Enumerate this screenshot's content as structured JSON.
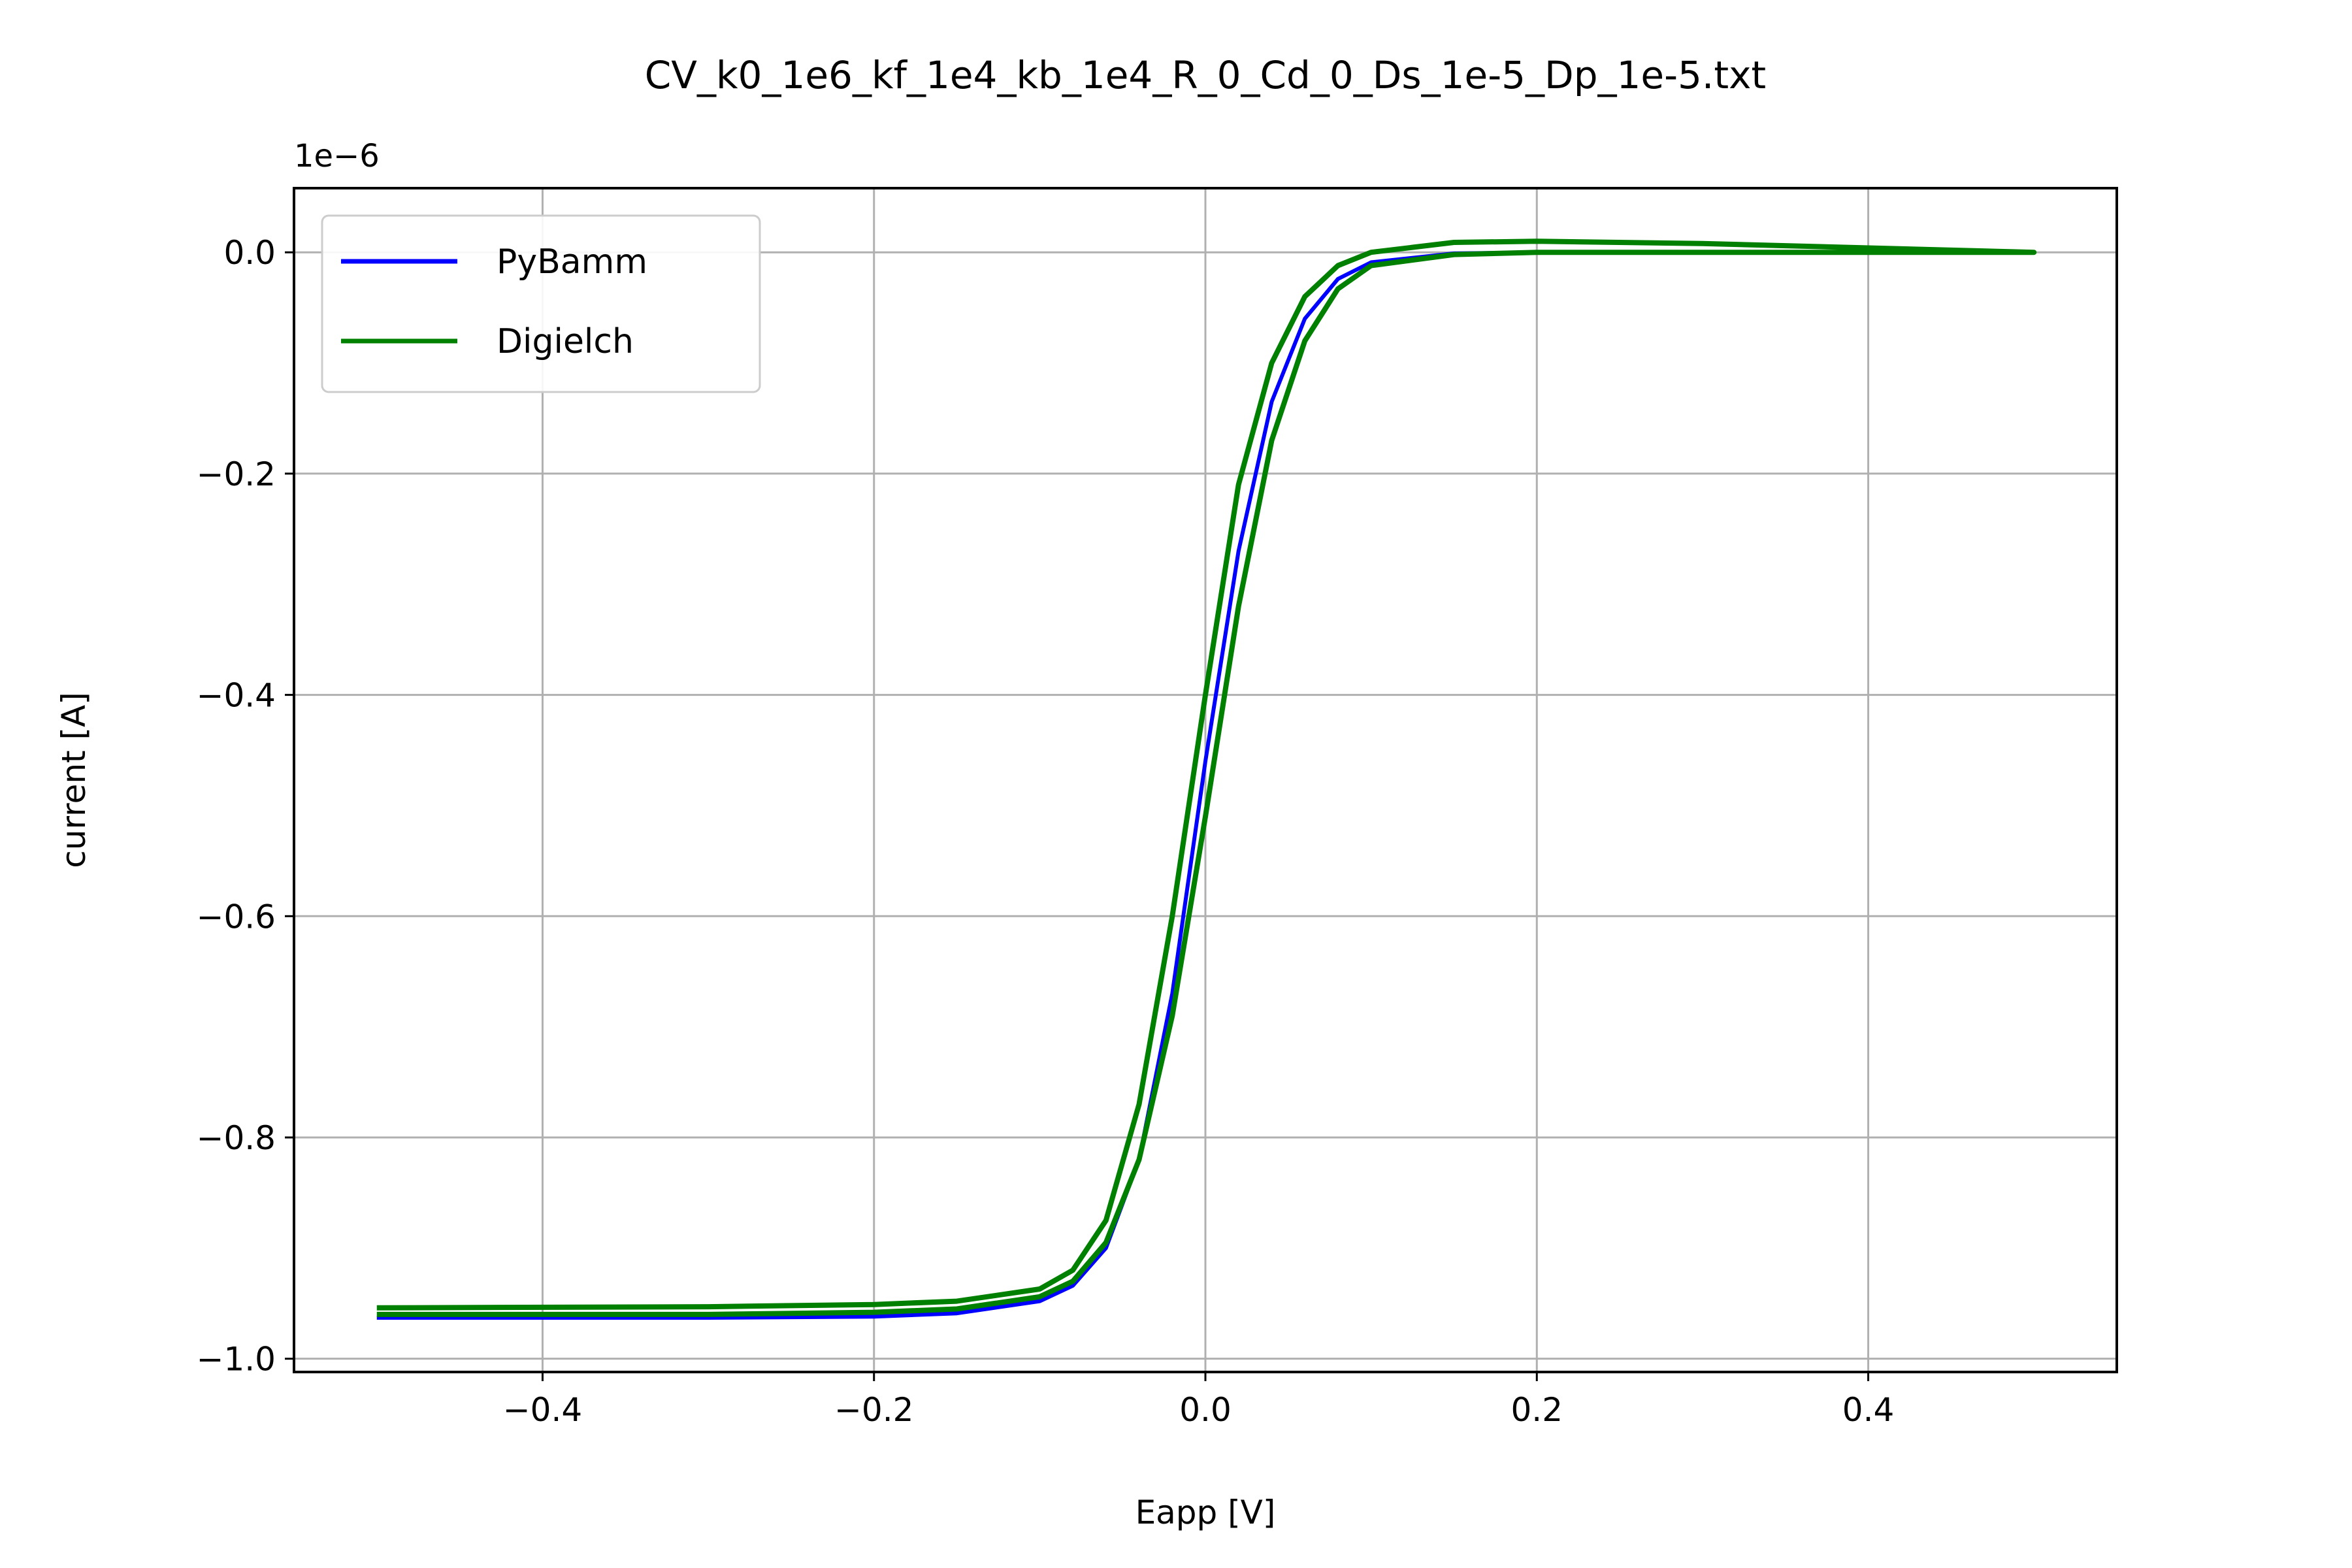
{
  "chart_data": {
    "type": "line",
    "title": "CV_k0_1e6_kf_1e4_kb_1e4_R_0_Cd_0_Ds_1e-5_Dp_1e-5.txt",
    "xlabel": "Eapp [V]",
    "ylabel": "current [A]",
    "y_offset_label": "1e−6",
    "xlim": [
      -0.55,
      0.55
    ],
    "ylim": [
      -1.012,
      0.058
    ],
    "grid": true,
    "legend_position": "upper-left",
    "x_ticks": [
      -0.4,
      -0.2,
      0.0,
      0.2,
      0.4
    ],
    "x_tick_labels": [
      "−0.4",
      "−0.2",
      "0.0",
      "0.2",
      "0.4"
    ],
    "y_ticks": [
      0.0,
      -0.2,
      -0.4,
      -0.6,
      -0.8,
      -1.0
    ],
    "y_tick_labels": [
      "0.0",
      "−0.2",
      "−0.4",
      "−0.6",
      "−0.8",
      "−1.0"
    ],
    "y_units_scale": "1e-6",
    "series": [
      {
        "name": "PyBamm",
        "color": "#0000ff",
        "points": [
          [
            -0.5,
            -0.963
          ],
          [
            -0.3,
            -0.963
          ],
          [
            -0.2,
            -0.962
          ],
          [
            -0.15,
            -0.959
          ],
          [
            -0.1,
            -0.948
          ],
          [
            -0.08,
            -0.934
          ],
          [
            -0.06,
            -0.9
          ],
          [
            -0.04,
            -0.82
          ],
          [
            -0.02,
            -0.67
          ],
          [
            0.0,
            -0.46
          ],
          [
            0.02,
            -0.27
          ],
          [
            0.04,
            -0.135
          ],
          [
            0.06,
            -0.06
          ],
          [
            0.08,
            -0.024
          ],
          [
            0.1,
            -0.009
          ],
          [
            0.15,
            -0.001
          ],
          [
            0.2,
            0.0
          ],
          [
            0.3,
            0.0
          ],
          [
            0.5,
            0.0
          ],
          [
            0.3,
            0.0
          ],
          [
            0.2,
            0.0
          ],
          [
            0.15,
            -0.001
          ],
          [
            0.1,
            -0.009
          ],
          [
            0.08,
            -0.024
          ],
          [
            0.06,
            -0.06
          ],
          [
            0.04,
            -0.135
          ],
          [
            0.02,
            -0.27
          ],
          [
            0.0,
            -0.46
          ],
          [
            -0.02,
            -0.67
          ],
          [
            -0.04,
            -0.82
          ],
          [
            -0.06,
            -0.9
          ],
          [
            -0.08,
            -0.934
          ],
          [
            -0.1,
            -0.948
          ],
          [
            -0.15,
            -0.959
          ],
          [
            -0.2,
            -0.962
          ],
          [
            -0.3,
            -0.963
          ],
          [
            -0.5,
            -0.963
          ]
        ]
      },
      {
        "name": "Digielch",
        "color": "#008000",
        "points": [
          [
            -0.5,
            -0.96
          ],
          [
            -0.3,
            -0.96
          ],
          [
            -0.2,
            -0.958
          ],
          [
            -0.15,
            -0.955
          ],
          [
            -0.1,
            -0.944
          ],
          [
            -0.08,
            -0.93
          ],
          [
            -0.06,
            -0.895
          ],
          [
            -0.04,
            -0.82
          ],
          [
            -0.02,
            -0.69
          ],
          [
            0.0,
            -0.51
          ],
          [
            0.02,
            -0.32
          ],
          [
            0.04,
            -0.17
          ],
          [
            0.06,
            -0.08
          ],
          [
            0.08,
            -0.033
          ],
          [
            0.1,
            -0.012
          ],
          [
            0.15,
            -0.002
          ],
          [
            0.2,
            0.0
          ],
          [
            0.3,
            0.0
          ],
          [
            0.5,
            0.0
          ],
          [
            0.3,
            0.008
          ],
          [
            0.2,
            0.01
          ],
          [
            0.15,
            0.009
          ],
          [
            0.1,
            0.0
          ],
          [
            0.08,
            -0.012
          ],
          [
            0.06,
            -0.04
          ],
          [
            0.04,
            -0.1
          ],
          [
            0.02,
            -0.21
          ],
          [
            0.0,
            -0.4
          ],
          [
            -0.02,
            -0.6
          ],
          [
            -0.04,
            -0.77
          ],
          [
            -0.06,
            -0.875
          ],
          [
            -0.08,
            -0.92
          ],
          [
            -0.1,
            -0.937
          ],
          [
            -0.15,
            -0.948
          ],
          [
            -0.2,
            -0.951
          ],
          [
            -0.3,
            -0.953
          ],
          [
            -0.5,
            -0.954
          ]
        ]
      }
    ]
  }
}
